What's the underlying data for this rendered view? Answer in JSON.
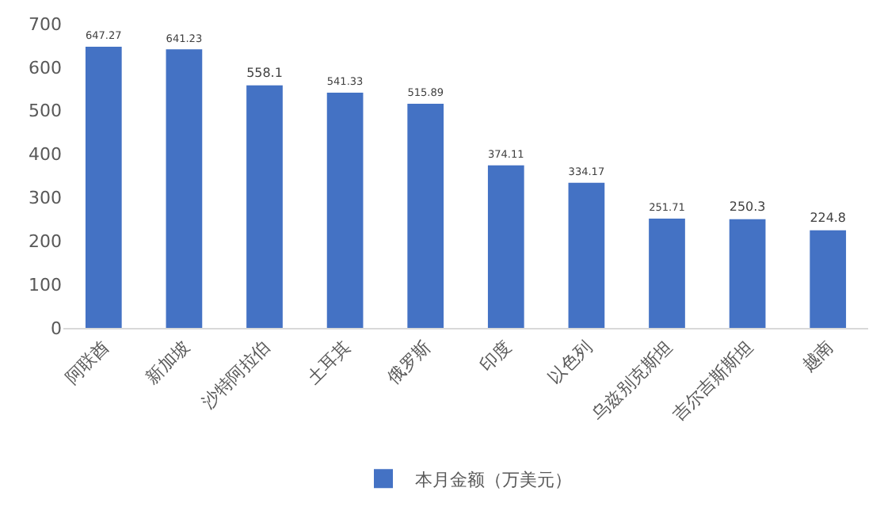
{
  "chart_data": {
    "type": "bar",
    "categories": [
      "阿联酋",
      "新加坡",
      "沙特阿拉伯",
      "土耳其",
      "俄罗斯",
      "印度",
      "以色列",
      "乌兹别克斯坦",
      "吉尔吉斯斯坦",
      "越南"
    ],
    "series": [
      {
        "name": "本月金额（万美元）",
        "color": "#4472c4",
        "values": [
          647.27,
          641.23,
          558.1,
          541.33,
          515.89,
          374.11,
          334.17,
          251.71,
          250.3,
          224.8
        ]
      }
    ],
    "ylim": [
      0,
      700
    ],
    "yticks": [
      0,
      100,
      200,
      300,
      400,
      500,
      600,
      700
    ],
    "data_labels": true,
    "grid": false,
    "legend": "bottom"
  }
}
